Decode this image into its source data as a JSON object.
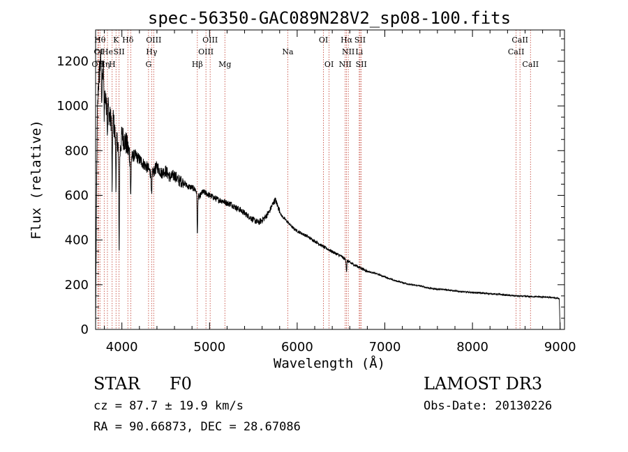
{
  "chart_data": {
    "type": "line",
    "title": "spec-56350-GAC089N28V2_sp08-100.fits",
    "xlabel": "Wavelength (Å)",
    "ylabel": "Flux (relative)",
    "xlim": [
      3700,
      9050
    ],
    "ylim": [
      0,
      1340
    ],
    "x_ticks": [
      4000,
      5000,
      6000,
      7000,
      8000,
      9000
    ],
    "y_ticks": [
      0,
      200,
      400,
      600,
      800,
      1000,
      1200
    ],
    "grid": false,
    "series": [
      {
        "name": "flux",
        "color": "#000000",
        "anchors": [
          [
            3700,
            0
          ],
          [
            3705,
            300
          ],
          [
            3712,
            650
          ],
          [
            3720,
            950
          ],
          [
            3730,
            1080
          ],
          [
            3745,
            1150
          ],
          [
            3760,
            1220
          ],
          [
            3775,
            1120
          ],
          [
            3790,
            1180
          ],
          [
            3805,
            1060
          ],
          [
            3820,
            1000
          ],
          [
            3835,
            1090
          ],
          [
            3850,
            970
          ],
          [
            3870,
            940
          ],
          [
            3900,
            950
          ],
          [
            3935,
            820
          ],
          [
            3950,
            850
          ],
          [
            3970,
            760
          ],
          [
            4000,
            870
          ],
          [
            4050,
            830
          ],
          [
            4100,
            770
          ],
          [
            4150,
            780
          ],
          [
            4200,
            760
          ],
          [
            4250,
            740
          ],
          [
            4300,
            720
          ],
          [
            4340,
            690
          ],
          [
            4400,
            730
          ],
          [
            4450,
            700
          ],
          [
            4500,
            710
          ],
          [
            4550,
            680
          ],
          [
            4600,
            690
          ],
          [
            4650,
            665
          ],
          [
            4700,
            660
          ],
          [
            4750,
            640
          ],
          [
            4800,
            635
          ],
          [
            4840,
            625
          ],
          [
            4880,
            590
          ],
          [
            4920,
            615
          ],
          [
            4960,
            610
          ],
          [
            5000,
            600
          ],
          [
            5050,
            590
          ],
          [
            5100,
            580
          ],
          [
            5150,
            575
          ],
          [
            5200,
            565
          ],
          [
            5250,
            560
          ],
          [
            5300,
            545
          ],
          [
            5350,
            535
          ],
          [
            5400,
            520
          ],
          [
            5450,
            505
          ],
          [
            5500,
            490
          ],
          [
            5560,
            478
          ],
          [
            5620,
            495
          ],
          [
            5680,
            525
          ],
          [
            5720,
            560
          ],
          [
            5750,
            580
          ],
          [
            5780,
            550
          ],
          [
            5820,
            510
          ],
          [
            5880,
            485
          ],
          [
            5950,
            455
          ],
          [
            6000,
            440
          ],
          [
            6100,
            420
          ],
          [
            6200,
            395
          ],
          [
            6300,
            370
          ],
          [
            6400,
            348
          ],
          [
            6500,
            328
          ],
          [
            6560,
            310
          ],
          [
            6620,
            295
          ],
          [
            6700,
            280
          ],
          [
            6800,
            260
          ],
          [
            6900,
            250
          ],
          [
            7000,
            235
          ],
          [
            7100,
            220
          ],
          [
            7200,
            210
          ],
          [
            7300,
            200
          ],
          [
            7400,
            195
          ],
          [
            7500,
            185
          ],
          [
            7600,
            180
          ],
          [
            7700,
            178
          ],
          [
            7800,
            172
          ],
          [
            7900,
            168
          ],
          [
            8000,
            165
          ],
          [
            8100,
            163
          ],
          [
            8200,
            160
          ],
          [
            8300,
            157
          ],
          [
            8400,
            153
          ],
          [
            8500,
            150
          ],
          [
            8600,
            148
          ],
          [
            8700,
            147
          ],
          [
            8800,
            145
          ],
          [
            8900,
            143
          ],
          [
            8990,
            138
          ],
          [
            9000,
            0
          ]
        ],
        "absorption_dips": [
          {
            "x": 3770,
            "depth": 120
          },
          {
            "x": 3797,
            "depth": 150
          },
          {
            "x": 3835,
            "depth": 200
          },
          {
            "x": 3889,
            "depth": 320
          },
          {
            "x": 3933,
            "depth": 170
          },
          {
            "x": 3968,
            "depth": 430
          },
          {
            "x": 4101,
            "depth": 180
          },
          {
            "x": 4340,
            "depth": 100
          },
          {
            "x": 4861,
            "depth": 190
          },
          {
            "x": 6563,
            "depth": 50
          }
        ]
      }
    ],
    "line_markers": [
      {
        "x": 3726,
        "label": "OII",
        "row": 3
      },
      {
        "x": 3733,
        "label": "OI",
        "row": 2
      },
      {
        "x": 3750,
        "label": "Hθ",
        "row": 1
      },
      {
        "x": 3798,
        "label": "Hη",
        "row": 3
      },
      {
        "x": 3835,
        "label": "He",
        "row": 2
      },
      {
        "x": 3889,
        "label": "H",
        "row": 3
      },
      {
        "x": 3933,
        "label": "K",
        "row": 1
      },
      {
        "x": 3968,
        "label": "SII",
        "row": 2
      },
      {
        "x": 4068,
        "label": "Hδ",
        "row": 1
      },
      {
        "x": 4101,
        "label": "",
        "row": 0
      },
      {
        "x": 4304,
        "label": "G",
        "row": 3
      },
      {
        "x": 4340,
        "label": "Hγ",
        "row": 2
      },
      {
        "x": 4363,
        "label": "OIII",
        "row": 1
      },
      {
        "x": 4861,
        "label": "Hβ",
        "row": 3
      },
      {
        "x": 4959,
        "label": "OIII",
        "row": 2
      },
      {
        "x": 5007,
        "label": "OIII",
        "row": 1
      },
      {
        "x": 5175,
        "label": "Mg",
        "row": 3
      },
      {
        "x": 5893,
        "label": "Na",
        "row": 2
      },
      {
        "x": 6300,
        "label": "OI",
        "row": 1
      },
      {
        "x": 6364,
        "label": "OI",
        "row": 3
      },
      {
        "x": 6548,
        "label": "NII",
        "row": 3
      },
      {
        "x": 6563,
        "label": "Hα",
        "row": 1
      },
      {
        "x": 6583,
        "label": "NII",
        "row": 2
      },
      {
        "x": 6708,
        "label": "Li",
        "row": 2
      },
      {
        "x": 6717,
        "label": "SII",
        "row": 1
      },
      {
        "x": 6731,
        "label": "SII",
        "row": 3
      },
      {
        "x": 8498,
        "label": "CaII",
        "row": 2
      },
      {
        "x": 8542,
        "label": "CaII",
        "row": 1
      },
      {
        "x": 8662,
        "label": "CaII",
        "row": 3
      }
    ]
  },
  "info": {
    "classification": "STAR",
    "subclass": "F0",
    "survey": "LAMOST DR3",
    "redshift": "cz = 87.7 ± 19.9 km/s",
    "obs_date": "Obs-Date: 20130226",
    "coords": "RA =  90.66873, DEC =  28.67086"
  }
}
